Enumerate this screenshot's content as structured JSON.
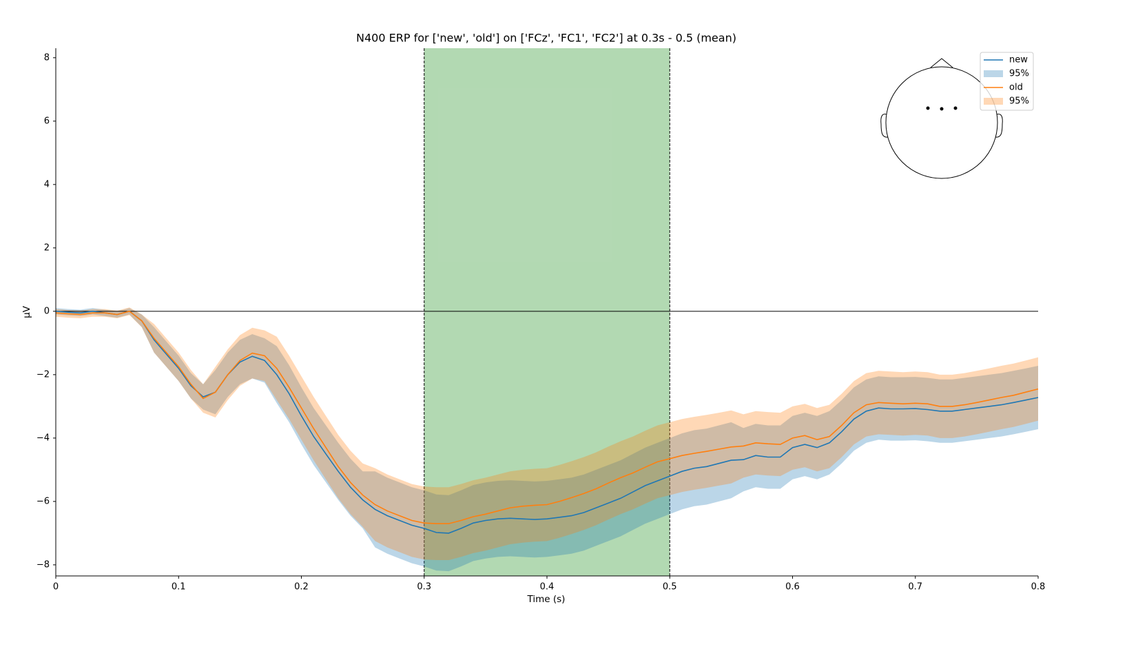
{
  "chart_data": {
    "type": "line",
    "title": "N400 ERP for ['new', 'old'] on ['FCz', 'FC1', 'FC2'] at 0.3s - 0.5 (mean)",
    "x_label": "Time (s)",
    "y_label": "µV",
    "x": [
      0,
      0.01,
      0.02,
      0.03,
      0.04,
      0.05,
      0.06,
      0.07,
      0.08,
      0.09,
      0.1,
      0.11,
      0.12,
      0.13,
      0.14,
      0.15,
      0.16,
      0.17,
      0.18,
      0.19,
      0.2,
      0.21,
      0.22,
      0.23,
      0.24,
      0.25,
      0.26,
      0.27,
      0.28,
      0.29,
      0.3,
      0.31,
      0.32,
      0.33,
      0.34,
      0.35,
      0.36,
      0.37,
      0.38,
      0.39,
      0.4,
      0.41,
      0.42,
      0.43,
      0.44,
      0.45,
      0.46,
      0.47,
      0.48,
      0.49,
      0.5,
      0.51,
      0.52,
      0.53,
      0.54,
      0.55,
      0.56,
      0.57,
      0.58,
      0.59,
      0.6,
      0.61,
      0.62,
      0.63,
      0.64,
      0.65,
      0.66,
      0.67,
      0.68,
      0.69,
      0.7,
      0.71,
      0.72,
      0.73,
      0.74,
      0.75,
      0.76,
      0.77,
      0.78,
      0.79,
      0.8
    ],
    "series": [
      {
        "name": "new",
        "color": "#1f77b4",
        "values": [
          0,
          -0.03,
          -0.05,
          0,
          -0.05,
          -0.1,
          0,
          -0.3,
          -0.9,
          -1.35,
          -1.8,
          -2.35,
          -2.7,
          -2.55,
          -2,
          -1.6,
          -1.42,
          -1.55,
          -2,
          -2.6,
          -3.3,
          -3.95,
          -4.5,
          -5.05,
          -5.55,
          -5.95,
          -6.25,
          -6.45,
          -6.6,
          -6.75,
          -6.85,
          -6.98,
          -7,
          -6.85,
          -6.68,
          -6.6,
          -6.55,
          -6.53,
          -6.55,
          -6.57,
          -6.55,
          -6.5,
          -6.45,
          -6.35,
          -6.2,
          -6.05,
          -5.9,
          -5.7,
          -5.5,
          -5.35,
          -5.2,
          -5.05,
          -4.95,
          -4.9,
          -4.8,
          -4.7,
          -4.68,
          -4.55,
          -4.6,
          -4.6,
          -4.3,
          -4.2,
          -4.3,
          -4.15,
          -3.8,
          -3.4,
          -3.15,
          -3.05,
          -3.08,
          -3.08,
          -3.07,
          -3.1,
          -3.15,
          -3.15,
          -3.1,
          -3.05,
          -3,
          -2.95,
          -2.88,
          -2.8,
          -2.72
        ],
        "band": {
          "name": "95%",
          "lower": [
            -0.1,
            -0.13,
            -0.15,
            -0.1,
            -0.15,
            -0.2,
            -0.1,
            -0.5,
            -1.3,
            -1.75,
            -2.2,
            -2.75,
            -3.1,
            -3.25,
            -2.7,
            -2.3,
            -2.12,
            -2.25,
            -2.9,
            -3.5,
            -4.2,
            -4.85,
            -5.4,
            -5.95,
            -6.45,
            -6.85,
            -7.45,
            -7.65,
            -7.8,
            -7.95,
            -8.05,
            -8.18,
            -8.2,
            -8.05,
            -7.88,
            -7.8,
            -7.75,
            -7.73,
            -7.75,
            -7.77,
            -7.75,
            -7.7,
            -7.65,
            -7.55,
            -7.4,
            -7.25,
            -7.1,
            -6.9,
            -6.7,
            -6.55,
            -6.4,
            -6.25,
            -6.15,
            -6.1,
            -6,
            -5.9,
            -5.68,
            -5.55,
            -5.6,
            -5.6,
            -5.3,
            -5.2,
            -5.3,
            -5.15,
            -4.8,
            -4.4,
            -4.15,
            -4.05,
            -4.08,
            -4.08,
            -4.07,
            -4.1,
            -4.15,
            -4.15,
            -4.1,
            -4.05,
            -4,
            -3.95,
            -3.88,
            -3.8,
            -3.72
          ],
          "upper": [
            0.1,
            0.07,
            0.05,
            0.1,
            0.05,
            0,
            0.1,
            -0.1,
            -0.5,
            -0.95,
            -1.4,
            -1.95,
            -2.3,
            -1.85,
            -1.3,
            -0.9,
            -0.72,
            -0.85,
            -1.1,
            -1.7,
            -2.4,
            -3.05,
            -3.6,
            -4.15,
            -4.65,
            -5.05,
            -5.05,
            -5.25,
            -5.4,
            -5.55,
            -5.65,
            -5.78,
            -5.8,
            -5.65,
            -5.48,
            -5.4,
            -5.35,
            -5.33,
            -5.35,
            -5.37,
            -5.35,
            -5.3,
            -5.25,
            -5.15,
            -5,
            -4.85,
            -4.7,
            -4.5,
            -4.3,
            -4.15,
            -4,
            -3.85,
            -3.75,
            -3.7,
            -3.6,
            -3.5,
            -3.68,
            -3.55,
            -3.6,
            -3.6,
            -3.3,
            -3.2,
            -3.3,
            -3.15,
            -2.8,
            -2.4,
            -2.15,
            -2.05,
            -2.08,
            -2.08,
            -2.07,
            -2.1,
            -2.15,
            -2.15,
            -2.1,
            -2.05,
            -2,
            -1.95,
            -1.88,
            -1.8,
            -1.72
          ]
        }
      },
      {
        "name": "old",
        "color": "#ff7f0e",
        "values": [
          -0.05,
          -0.08,
          -0.1,
          -0.05,
          -0.05,
          -0.1,
          0,
          -0.3,
          -0.85,
          -1.3,
          -1.75,
          -2.3,
          -2.75,
          -2.55,
          -2,
          -1.55,
          -1.32,
          -1.4,
          -1.8,
          -2.4,
          -3.05,
          -3.7,
          -4.3,
          -4.9,
          -5.4,
          -5.8,
          -6.1,
          -6.3,
          -6.45,
          -6.6,
          -6.68,
          -6.7,
          -6.7,
          -6.6,
          -6.48,
          -6.4,
          -6.3,
          -6.2,
          -6.15,
          -6.12,
          -6.1,
          -6,
          -5.88,
          -5.75,
          -5.6,
          -5.42,
          -5.25,
          -5.1,
          -4.92,
          -4.75,
          -4.65,
          -4.55,
          -4.48,
          -4.42,
          -4.35,
          -4.28,
          -4.25,
          -4.15,
          -4.18,
          -4.2,
          -4,
          -3.92,
          -4.05,
          -3.95,
          -3.6,
          -3.2,
          -2.95,
          -2.88,
          -2.9,
          -2.92,
          -2.9,
          -2.92,
          -3,
          -3,
          -2.95,
          -2.88,
          -2.8,
          -2.72,
          -2.65,
          -2.55,
          -2.45
        ],
        "band": {
          "name": "95%",
          "lower": [
            -0.17,
            -0.2,
            -0.22,
            -0.17,
            -0.17,
            -0.22,
            -0.12,
            -0.5,
            -1.3,
            -1.75,
            -2.2,
            -2.75,
            -3.2,
            -3.35,
            -2.8,
            -2.35,
            -2.12,
            -2.2,
            -2.8,
            -3.4,
            -4.05,
            -4.7,
            -5.3,
            -5.9,
            -6.4,
            -6.8,
            -7.25,
            -7.45,
            -7.6,
            -7.75,
            -7.83,
            -7.85,
            -7.85,
            -7.75,
            -7.63,
            -7.55,
            -7.45,
            -7.35,
            -7.3,
            -7.27,
            -7.25,
            -7.15,
            -7.03,
            -6.9,
            -6.75,
            -6.57,
            -6.4,
            -6.25,
            -6.07,
            -5.9,
            -5.8,
            -5.7,
            -5.63,
            -5.57,
            -5.5,
            -5.43,
            -5.25,
            -5.15,
            -5.18,
            -5.2,
            -5,
            -4.92,
            -5.05,
            -4.95,
            -4.6,
            -4.2,
            -3.95,
            -3.88,
            -3.9,
            -3.92,
            -3.9,
            -3.92,
            -4,
            -4,
            -3.95,
            -3.88,
            -3.8,
            -3.72,
            -3.65,
            -3.55,
            -3.45
          ],
          "upper": [
            0.07,
            0.04,
            0.02,
            0.07,
            0.07,
            0.02,
            0.12,
            -0.1,
            -0.4,
            -0.85,
            -1.3,
            -1.85,
            -2.3,
            -1.75,
            -1.2,
            -0.75,
            -0.52,
            -0.6,
            -0.8,
            -1.4,
            -2.05,
            -2.7,
            -3.3,
            -3.9,
            -4.4,
            -4.8,
            -4.95,
            -5.15,
            -5.3,
            -5.45,
            -5.53,
            -5.55,
            -5.55,
            -5.45,
            -5.33,
            -5.25,
            -5.15,
            -5.05,
            -5,
            -4.97,
            -4.95,
            -4.85,
            -4.73,
            -4.6,
            -4.45,
            -4.27,
            -4.1,
            -3.95,
            -3.77,
            -3.6,
            -3.5,
            -3.4,
            -3.33,
            -3.27,
            -3.2,
            -3.13,
            -3.25,
            -3.15,
            -3.18,
            -3.2,
            -3,
            -2.92,
            -3.05,
            -2.95,
            -2.6,
            -2.2,
            -1.95,
            -1.88,
            -1.9,
            -1.92,
            -1.9,
            -1.92,
            -2,
            -2,
            -1.95,
            -1.88,
            -1.8,
            -1.72,
            -1.65,
            -1.55,
            -1.45
          ]
        }
      }
    ],
    "band_opacity": 0.3,
    "span": [
      0.3,
      0.5
    ],
    "span_color": "#008000",
    "span_opacity": 0.3,
    "hline": 0,
    "xlim": [
      0,
      0.8
    ],
    "xticks": [
      0,
      0.1,
      0.2,
      0.3,
      0.4,
      0.5,
      0.6,
      0.7,
      0.8
    ],
    "ylim": [
      -8.35,
      8.3
    ],
    "yticks": [
      {
        "value": -8,
        "label": "−8"
      },
      {
        "value": -6,
        "label": "−6"
      },
      {
        "value": -4,
        "label": "−4"
      },
      {
        "value": -2,
        "label": "−2"
      },
      0,
      2,
      4,
      6,
      8
    ],
    "legend": "upper right"
  }
}
